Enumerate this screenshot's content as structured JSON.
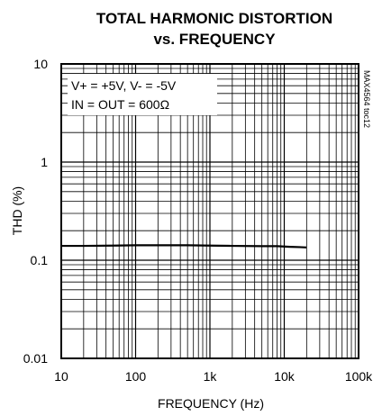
{
  "chart_data": {
    "type": "line",
    "title": [
      "TOTAL HARMONIC DISTORTION",
      "vs. FREQUENCY"
    ],
    "xlabel": "FREQUENCY (Hz)",
    "ylabel": "THD (%)",
    "xscale": "log",
    "yscale": "log",
    "xlim": [
      10,
      100000
    ],
    "ylim": [
      0.01,
      10
    ],
    "x_ticks": [
      10,
      100,
      1000,
      10000,
      100000
    ],
    "x_tick_labels": [
      "10",
      "100",
      "1k",
      "10k",
      "100k"
    ],
    "y_ticks": [
      0.01,
      0.1,
      1,
      10
    ],
    "y_tick_labels": [
      "0.01",
      "0.1",
      "1",
      "10"
    ],
    "grid": true,
    "annotations": [
      "V+ = +5V, V- = -5V",
      "IN = OUT = 600Ω"
    ],
    "figure_code": "MAX4564 toc12",
    "series": [
      {
        "x": [
          10,
          20,
          50,
          100,
          200,
          500,
          1000,
          2000,
          5000,
          8000,
          12000,
          16000,
          20000
        ],
        "y": [
          0.14,
          0.14,
          0.141,
          0.142,
          0.142,
          0.142,
          0.141,
          0.14,
          0.139,
          0.139,
          0.137,
          0.136,
          0.135
        ]
      }
    ]
  }
}
